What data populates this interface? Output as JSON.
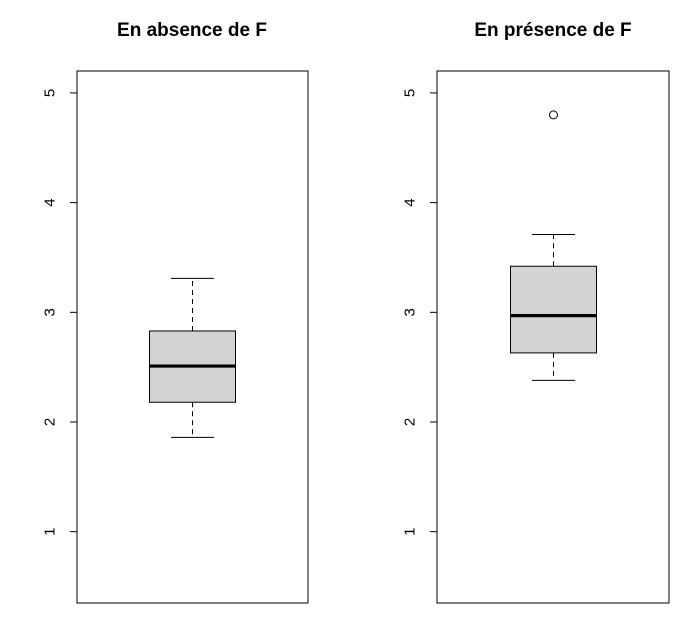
{
  "chart_data": [
    {
      "type": "box",
      "title": "En absence de F",
      "xlabel": "",
      "ylabel": "",
      "ylim": [
        0.35,
        5.2
      ],
      "yticks": [
        1,
        2,
        3,
        4,
        5
      ],
      "grid": false,
      "box": {
        "min": 1.86,
        "q1": 2.18,
        "median": 2.51,
        "q3": 2.83,
        "max": 3.31,
        "outliers": []
      },
      "box_color": "#d3d3d3"
    },
    {
      "type": "box",
      "title": "En présence de F",
      "xlabel": "",
      "ylabel": "",
      "ylim": [
        0.35,
        5.2
      ],
      "yticks": [
        1,
        2,
        3,
        4,
        5
      ],
      "grid": false,
      "box": {
        "min": 2.38,
        "q1": 2.63,
        "median": 2.97,
        "q3": 3.42,
        "max": 3.71,
        "outliers": [
          4.8
        ]
      },
      "box_color": "#d3d3d3"
    }
  ]
}
